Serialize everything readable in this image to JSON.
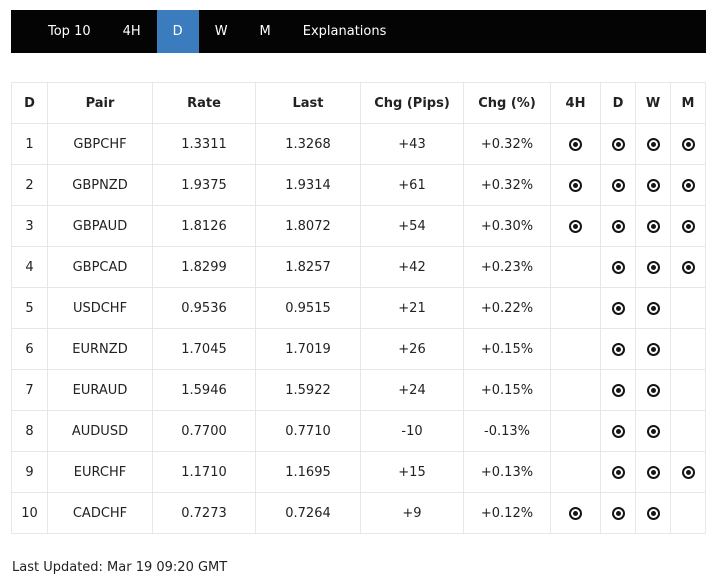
{
  "nav": {
    "items": [
      {
        "label": "Top 10",
        "active": false
      },
      {
        "label": "4H",
        "active": false
      },
      {
        "label": "D",
        "active": true
      },
      {
        "label": "W",
        "active": false
      },
      {
        "label": "M",
        "active": false
      },
      {
        "label": "Explanations",
        "active": false
      }
    ]
  },
  "table": {
    "columns": [
      {
        "key": "rank",
        "label": "D"
      },
      {
        "key": "pair",
        "label": "Pair"
      },
      {
        "key": "rate",
        "label": "Rate"
      },
      {
        "key": "last",
        "label": "Last"
      },
      {
        "key": "chg-pips",
        "label": "Chg (Pips)"
      },
      {
        "key": "chg-pct",
        "label": "Chg (%)"
      },
      {
        "key": "4h",
        "label": "4H"
      },
      {
        "key": "d",
        "label": "D"
      },
      {
        "key": "w",
        "label": "W"
      },
      {
        "key": "m",
        "label": "M"
      }
    ],
    "rows": [
      {
        "rank": "1",
        "pair": "GBPCHF",
        "rate": "1.3311",
        "last": "1.3268",
        "chg_pips": "+43",
        "chg_pct": "+0.32%",
        "icons": {
          "h4": true,
          "d": true,
          "w": true,
          "m": true
        }
      },
      {
        "rank": "2",
        "pair": "GBPNZD",
        "rate": "1.9375",
        "last": "1.9314",
        "chg_pips": "+61",
        "chg_pct": "+0.32%",
        "icons": {
          "h4": true,
          "d": true,
          "w": true,
          "m": true
        }
      },
      {
        "rank": "3",
        "pair": "GBPAUD",
        "rate": "1.8126",
        "last": "1.8072",
        "chg_pips": "+54",
        "chg_pct": "+0.30%",
        "icons": {
          "h4": true,
          "d": true,
          "w": true,
          "m": true
        }
      },
      {
        "rank": "4",
        "pair": "GBPCAD",
        "rate": "1.8299",
        "last": "1.8257",
        "chg_pips": "+42",
        "chg_pct": "+0.23%",
        "icons": {
          "h4": false,
          "d": true,
          "w": true,
          "m": true
        }
      },
      {
        "rank": "5",
        "pair": "USDCHF",
        "rate": "0.9536",
        "last": "0.9515",
        "chg_pips": "+21",
        "chg_pct": "+0.22%",
        "icons": {
          "h4": false,
          "d": true,
          "w": true,
          "m": false
        }
      },
      {
        "rank": "6",
        "pair": "EURNZD",
        "rate": "1.7045",
        "last": "1.7019",
        "chg_pips": "+26",
        "chg_pct": "+0.15%",
        "icons": {
          "h4": false,
          "d": true,
          "w": true,
          "m": false
        }
      },
      {
        "rank": "7",
        "pair": "EURAUD",
        "rate": "1.5946",
        "last": "1.5922",
        "chg_pips": "+24",
        "chg_pct": "+0.15%",
        "icons": {
          "h4": false,
          "d": true,
          "w": true,
          "m": false
        }
      },
      {
        "rank": "8",
        "pair": "AUDUSD",
        "rate": "0.7700",
        "last": "0.7710",
        "chg_pips": "-10",
        "chg_pct": "-0.13%",
        "icons": {
          "h4": false,
          "d": true,
          "w": true,
          "m": false
        }
      },
      {
        "rank": "9",
        "pair": "EURCHF",
        "rate": "1.1710",
        "last": "1.1695",
        "chg_pips": "+15",
        "chg_pct": "+0.13%",
        "icons": {
          "h4": false,
          "d": true,
          "w": true,
          "m": true
        }
      },
      {
        "rank": "10",
        "pair": "CADCHF",
        "rate": "0.7273",
        "last": "0.7264",
        "chg_pips": "+9",
        "chg_pct": "+0.12%",
        "icons": {
          "h4": true,
          "d": true,
          "w": true,
          "m": false
        }
      }
    ]
  },
  "footer": {
    "last_updated": "Last Updated: Mar 19 09:20 GMT"
  },
  "icons": {
    "chart_marker": "circled-dot-target"
  },
  "colors": {
    "nav_bg": "#040404",
    "active_tab_blue": "#3a7cbe",
    "table_border": "#e7e7e7",
    "text": "#222222",
    "icon": "#151515"
  }
}
